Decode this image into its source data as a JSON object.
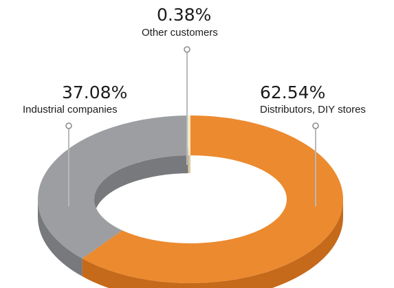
{
  "chart_data": {
    "type": "pie",
    "style": "3d-donut",
    "title": "",
    "slices": [
      {
        "label": "Distributors, DIY stores",
        "value": 62.54,
        "display": "62.54%",
        "color": "#ec8a2f",
        "side_color": "#c5691a"
      },
      {
        "label": "Industrial companies",
        "value": 37.08,
        "display": "37.08%",
        "color": "#9c9ea1",
        "side_color": "#77797c"
      },
      {
        "label": "Other customers",
        "value": 0.38,
        "display": "0.38%",
        "color": "#f7e9c8",
        "side_color": "#dcc9a0"
      }
    ],
    "leader_color": "#b9b9b9",
    "legend": "none"
  }
}
